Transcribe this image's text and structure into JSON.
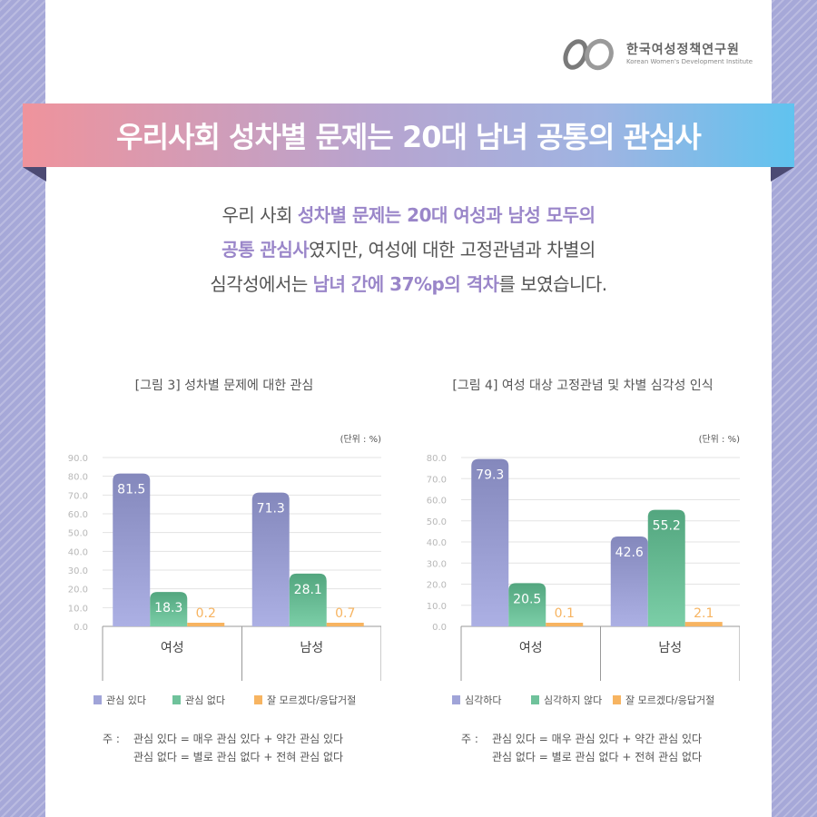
{
  "brand": {
    "name_ko": "한국여성정책연구원",
    "name_en": "Korean Women's Development Institute"
  },
  "banner": {
    "title": "우리사회 성차별 문제는 20대 남녀 공통의 관심사"
  },
  "summary": {
    "line1_a": "우리 사회 ",
    "line1_b": "성차별 문제는 20대 여성과 남성 모두의",
    "line2_a": "공통 관심사",
    "line2_b": "였지만, 여성에 대한 고정관념과 차별의",
    "line3_a": "심각성에서는 ",
    "line3_b": "남녀 간에 37%p의 격차",
    "line3_c": "를 보였습니다."
  },
  "colors": {
    "series1": "#a0a4d8",
    "series2": "#6fc29b",
    "series3": "#f7b461",
    "highlight": "#9a86c9",
    "background": "#a6a8d8"
  },
  "chart_data": [
    {
      "type": "bar",
      "title": "[그림 3] 성차별 문제에 대한 관심",
      "unit_label": "(단위 : %)",
      "categories": [
        "여성",
        "남성"
      ],
      "ylim": [
        0,
        90
      ],
      "yticks": [
        "0.0",
        "10.0",
        "20.0",
        "30.0",
        "40.0",
        "50.0",
        "60.0",
        "70.0",
        "80.0",
        "90.0"
      ],
      "grid": true,
      "legend_position": "bottom",
      "series": [
        {
          "name": "관심 있다",
          "values": [
            81.5,
            71.3
          ],
          "labels": [
            "81.5",
            "71.3"
          ],
          "color": "#a0a4d8"
        },
        {
          "name": "관심 없다",
          "values": [
            18.3,
            28.1
          ],
          "labels": [
            "18.3",
            "28.1"
          ],
          "color": "#6fc29b"
        },
        {
          "name": "잘 모르겠다/응답거절",
          "values": [
            0.2,
            0.7
          ],
          "labels": [
            "0.2",
            "0.7"
          ],
          "color": "#f7b461"
        }
      ],
      "note": {
        "prefix": "주 :",
        "line1": "관심 있다 = 매우 관심 있다 + 약간 관심 있다",
        "line2": "관심 없다 = 별로 관심 없다 + 전혀 관심 없다"
      }
    },
    {
      "type": "bar",
      "title": "[그림 4] 여성 대상 고정관념 및 차별 심각성 인식",
      "unit_label": "(단위 : %)",
      "categories": [
        "여성",
        "남성"
      ],
      "ylim": [
        0,
        80
      ],
      "yticks": [
        "0.0",
        "10.0",
        "20.0",
        "30.0",
        "40.0",
        "50.0",
        "60.0",
        "70.0",
        "80.0"
      ],
      "grid": true,
      "legend_position": "bottom",
      "series": [
        {
          "name": "심각하다",
          "values": [
            79.3,
            42.6
          ],
          "labels": [
            "79.3",
            "42.6"
          ],
          "color": "#a0a4d8"
        },
        {
          "name": "심각하지 않다",
          "values": [
            20.5,
            55.2
          ],
          "labels": [
            "20.5",
            "55.2"
          ],
          "color": "#6fc29b"
        },
        {
          "name": "잘 모르겠다/응답거절",
          "values": [
            0.1,
            2.1
          ],
          "labels": [
            "0.1",
            "2.1"
          ],
          "color": "#f7b461"
        }
      ],
      "note": {
        "prefix": "주 :",
        "line1": "관심 있다 = 매우 관심 있다 + 약간 관심 있다",
        "line2": "관심 없다 = 별로 관심 없다 + 전혀 관심 없다"
      }
    }
  ]
}
